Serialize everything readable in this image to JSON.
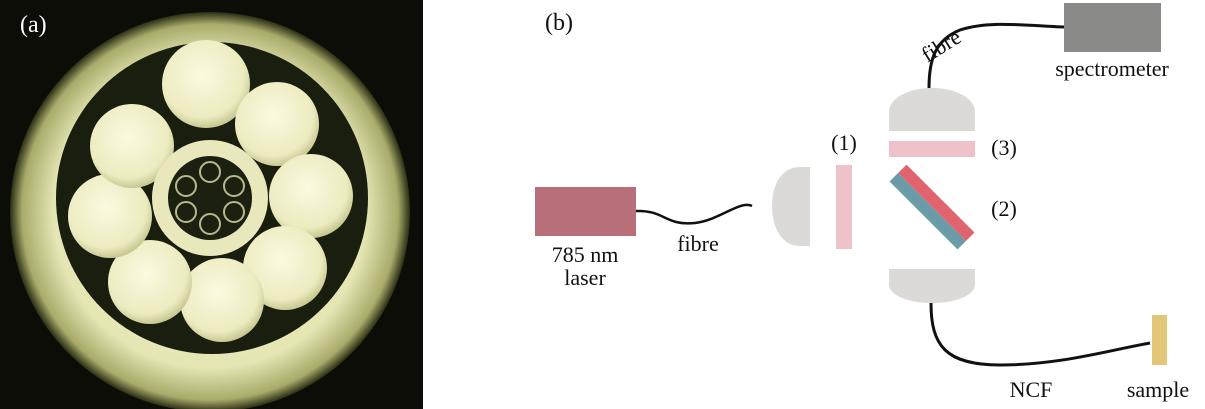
{
  "panel_a": {
    "label": "(a)"
  },
  "panel_b": {
    "label": "(b)",
    "components": {
      "laser": "785 nm\nlaser",
      "fibre_1": "fibre",
      "fibre_2": "fibre",
      "spectrometer": "spectrometer",
      "ncf": "NCF",
      "sample": "sample",
      "filter_1": "(1)",
      "dichroic_2": "(2)",
      "filter_3": "(3)"
    }
  },
  "colors": {
    "photo_background": "#0b0d06",
    "fiber_cladding": "#e6e7b8",
    "fiber_core_glow": "#f3f2cf",
    "laser": "#b86f79",
    "spectrometer": "#8a8a88",
    "lens": "#dcdad6",
    "filter": "#efc2c9",
    "dichroic_red": "#e0646e",
    "dichroic_blue": "#6a9ca7",
    "sample": "#e3c778",
    "cable": "#111111"
  }
}
